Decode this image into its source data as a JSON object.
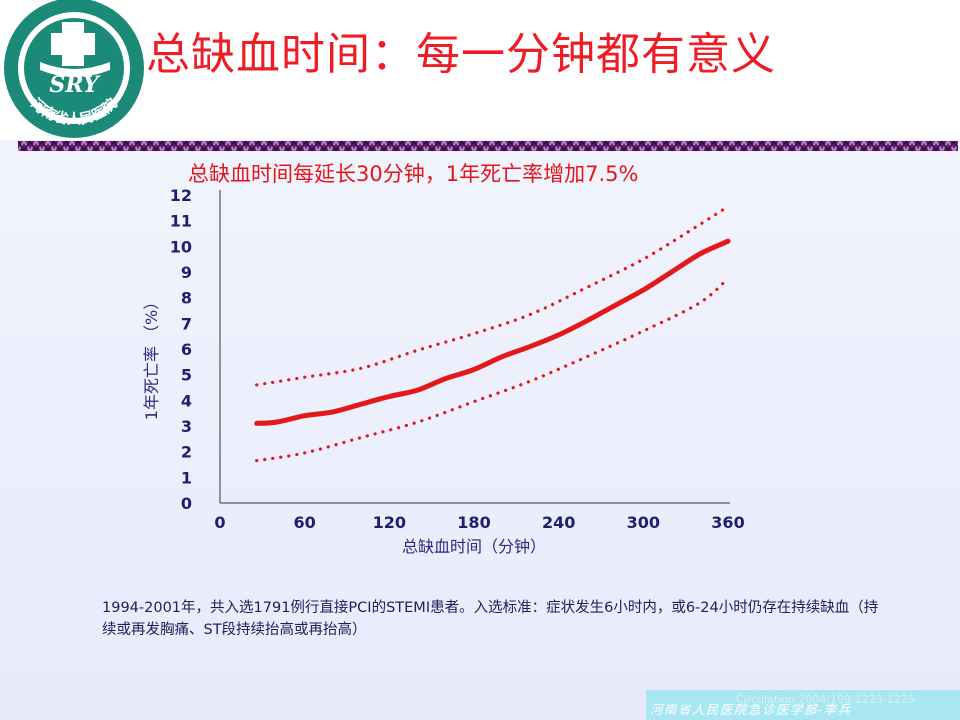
{
  "slide": {
    "title": "总缺血时间：每一分钟都有意义",
    "logo": {
      "text": "SRY",
      "ring_text": "河南省人民医院",
      "colors": {
        "primary": "#1b8a79",
        "cross": "#ffffff"
      }
    }
  },
  "chart_data": {
    "type": "line",
    "title": "总缺血时间每延长30分钟，1年死亡率增加7.5%",
    "xlabel": "总缺血时间（分钟）",
    "ylabel": "1年死亡率 （%）",
    "xlim": [
      0,
      360
    ],
    "ylim": [
      0,
      12
    ],
    "x_ticks": [
      0,
      60,
      120,
      180,
      240,
      300,
      360
    ],
    "y_ticks": [
      0,
      1,
      2,
      3,
      4,
      5,
      6,
      7,
      8,
      9,
      10,
      11,
      12
    ],
    "grid": false,
    "series": [
      {
        "style": "solid",
        "color": "#e31919",
        "x": [
          26,
          40,
          60,
          80,
          100,
          120,
          140,
          160,
          180,
          200,
          220,
          240,
          260,
          280,
          300,
          320,
          340,
          360
        ],
        "y": [
          3.1,
          3.15,
          3.4,
          3.55,
          3.85,
          4.15,
          4.4,
          4.85,
          5.2,
          5.7,
          6.1,
          6.55,
          7.1,
          7.7,
          8.3,
          9.0,
          9.7,
          10.2
        ]
      },
      {
        "style": "dotted",
        "color": "#e31919",
        "x": [
          26,
          60,
          100,
          140,
          180,
          220,
          260,
          300,
          340,
          360
        ],
        "y": [
          4.6,
          4.9,
          5.25,
          5.95,
          6.6,
          7.35,
          8.4,
          9.5,
          10.85,
          11.55
        ]
      },
      {
        "style": "dotted",
        "color": "#e31919",
        "x": [
          26,
          60,
          100,
          140,
          180,
          220,
          260,
          300,
          340,
          360
        ],
        "y": [
          1.65,
          1.95,
          2.55,
          3.15,
          3.95,
          4.75,
          5.7,
          6.7,
          7.8,
          8.75
        ]
      }
    ]
  },
  "footnote": "1994-2001年，共入选1791例行直接PCI的STEMI患者。入选标准：症状发生6小时内，或6-24小时仍存在持续缺血（持续或再发胸痛、ST段持续抬高或再抬高）",
  "footer": {
    "citation": "Circulation 2004;109:1223-1225",
    "department": "河南省人民医院急诊医学部-李兵"
  }
}
